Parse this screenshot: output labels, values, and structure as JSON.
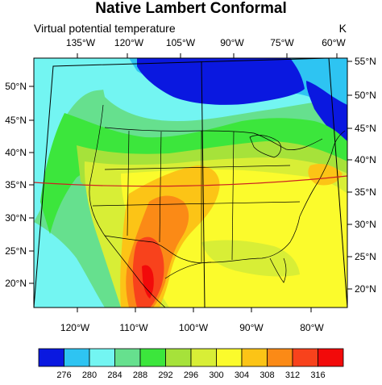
{
  "header": {
    "title": "Native Lambert Conformal",
    "left_string": "Virtual potential temperature",
    "right_string": "K"
  },
  "map": {
    "projection": "Lambert Conformal",
    "field": "virtual potential temperature",
    "top_longitude_labels": [
      "135°W",
      "120°W",
      "105°W",
      "90°W",
      "75°W",
      "60°W"
    ],
    "bottom_longitude_labels": [
      "120°W",
      "110°W",
      "100°W",
      "90°W",
      "80°W"
    ],
    "left_latitude_labels": [
      "50°N",
      "45°N",
      "40°N",
      "35°N",
      "30°N",
      "25°N",
      "20°N"
    ],
    "right_latitude_labels": [
      "55°N",
      "50°N",
      "45°N",
      "40°N",
      "35°N",
      "30°N",
      "25°N",
      "20°N"
    ],
    "highlight_line": {
      "description": "latitude reference line",
      "color": "#cc2222"
    }
  },
  "colorbar": {
    "levels": [
      "276",
      "280",
      "284",
      "288",
      "292",
      "296",
      "300",
      "304",
      "308",
      "312",
      "316"
    ],
    "colors": [
      "#0a18e0",
      "#2ec4f2",
      "#73f5f2",
      "#66e08e",
      "#3ce63c",
      "#a6e23a",
      "#d8ee36",
      "#fbfb2c",
      "#fcc416",
      "#fb8a16",
      "#f8421c",
      "#f20a0a"
    ]
  },
  "chart_data": {
    "type": "heatmap",
    "title": "Native Lambert Conformal",
    "subtitle": "Virtual potential temperature",
    "units": "K",
    "contour_levels": [
      276,
      280,
      284,
      288,
      292,
      296,
      300,
      304,
      308,
      312,
      316
    ],
    "x_ticks_top": [
      "135°W",
      "120°W",
      "105°W",
      "90°W",
      "75°W",
      "60°W"
    ],
    "x_ticks_bottom": [
      "120°W",
      "110°W",
      "100°W",
      "90°W",
      "80°W"
    ],
    "y_ticks_left": [
      "50°N",
      "45°N",
      "40°N",
      "35°N",
      "30°N",
      "25°N",
      "20°N"
    ],
    "y_ticks_right": [
      "55°N",
      "50°N",
      "45°N",
      "40°N",
      "35°N",
      "30°N",
      "25°N",
      "20°N"
    ]
  }
}
